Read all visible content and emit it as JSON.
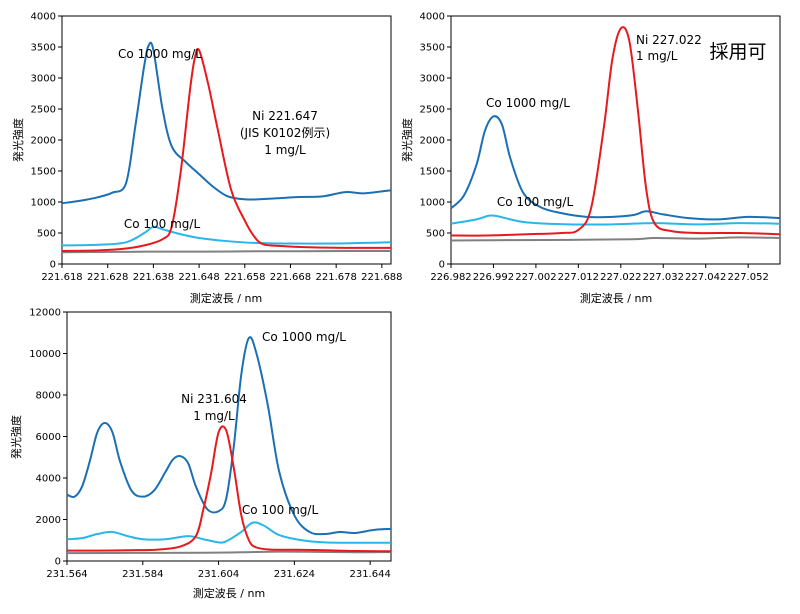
{
  "charts": [
    {
      "xlabel": "測定波長 / nm",
      "ylabel": "発光強度",
      "xticks": [
        "221.618",
        "221.628",
        "221.638",
        "221.648",
        "221.658",
        "221.668",
        "221.678",
        "221.688"
      ],
      "yticks": [
        "0",
        "500",
        "1000",
        "1500",
        "2000",
        "2500",
        "3000",
        "3500",
        "4000"
      ],
      "annotations": [
        {
          "lines": [
            "Co 1000 mg/L"
          ]
        },
        {
          "lines": [
            "Ni 221.647",
            "(JIS K0102例示)",
            "1 mg/L"
          ]
        },
        {
          "lines": [
            "Co 100 mg/L"
          ]
        }
      ]
    },
    {
      "xlabel": "測定波長 / nm",
      "ylabel": "発光強度",
      "xticks": [
        "226.982",
        "226.992",
        "227.002",
        "227.012",
        "227.022",
        "227.032",
        "227.042",
        "227.052"
      ],
      "yticks": [
        "0",
        "500",
        "1000",
        "1500",
        "2000",
        "2500",
        "3000",
        "3500",
        "4000"
      ],
      "annotations": [
        {
          "lines": [
            "Ni 227.022",
            "1 mg/L"
          ]
        },
        {
          "lines": [
            "Co 1000 mg/L"
          ]
        },
        {
          "lines": [
            "Co 100 mg/L"
          ]
        },
        {
          "lines": [
            "採用可"
          ]
        }
      ]
    },
    {
      "xlabel": "測定波長 / nm",
      "ylabel": "発光強度",
      "xticks": [
        "231.564",
        "231.584",
        "231.604",
        "231.624",
        "231.644"
      ],
      "yticks": [
        "0",
        "2000",
        "4000",
        "6000",
        "8000",
        "10000",
        "12000"
      ],
      "annotations": [
        {
          "lines": [
            "Co 1000 mg/L"
          ]
        },
        {
          "lines": [
            "Ni 231.604",
            "1 mg/L"
          ]
        },
        {
          "lines": [
            "Co 100 mg/L"
          ]
        }
      ]
    }
  ],
  "chart_data": [
    {
      "type": "line",
      "title": "",
      "xlabel": "測定波長 / nm",
      "ylabel": "発光強度",
      "xlim": [
        221.618,
        221.69
      ],
      "ylim": [
        0,
        4000
      ],
      "grid": false,
      "colors": {
        "co1000": "#1a6fb5",
        "ni": "#e8191c",
        "co100": "#29b6e8",
        "blank": "#808080"
      },
      "series": [
        {
          "color": "#1a6fb5",
          "x": [
            221.618,
            221.622,
            221.626,
            221.629,
            221.632,
            221.634,
            221.636,
            221.637,
            221.638,
            221.64,
            221.642,
            221.645,
            221.648,
            221.651,
            221.654,
            221.657,
            221.66,
            221.665,
            221.67,
            221.675,
            221.68,
            221.684,
            221.69
          ],
          "y": [
            980,
            1020,
            1080,
            1150,
            1300,
            2200,
            3200,
            3530,
            3450,
            2500,
            1900,
            1650,
            1450,
            1250,
            1100,
            1050,
            1040,
            1060,
            1080,
            1090,
            1160,
            1140,
            1190
          ]
        },
        {
          "color": "#e8191c",
          "x": [
            221.618,
            221.626,
            221.632,
            221.636,
            221.64,
            221.642,
            221.644,
            221.646,
            221.647,
            221.648,
            221.65,
            221.652,
            221.655,
            221.658,
            221.66,
            221.662,
            221.666,
            221.672,
            221.68,
            221.69
          ],
          "y": [
            210,
            220,
            250,
            300,
            400,
            600,
            1500,
            2800,
            3300,
            3450,
            2900,
            2200,
            1200,
            700,
            450,
            320,
            290,
            270,
            260,
            260
          ]
        },
        {
          "color": "#29b6e8",
          "x": [
            221.618,
            221.626,
            221.632,
            221.636,
            221.638,
            221.64,
            221.644,
            221.648,
            221.654,
            221.66,
            221.668,
            221.678,
            221.684,
            221.69
          ],
          "y": [
            300,
            310,
            350,
            500,
            600,
            560,
            480,
            420,
            370,
            340,
            330,
            330,
            340,
            350
          ]
        },
        {
          "color": "#808080",
          "x": [
            221.618,
            221.63,
            221.64,
            221.65,
            221.66,
            221.67,
            221.68,
            221.69
          ],
          "y": [
            190,
            195,
            200,
            200,
            205,
            205,
            210,
            210
          ]
        }
      ]
    },
    {
      "type": "line",
      "title": "",
      "xlabel": "測定波長 / nm",
      "ylabel": "発光強度",
      "xlim": [
        226.982,
        227.0595
      ],
      "ylim": [
        0,
        4000
      ],
      "grid": false,
      "colors": {
        "co1000": "#1a6fb5",
        "ni": "#e8191c",
        "co100": "#29b6e8",
        "blank": "#808080"
      },
      "series": [
        {
          "color": "#1a6fb5",
          "x": [
            226.982,
            226.985,
            226.988,
            226.99,
            226.992,
            226.994,
            226.996,
            226.999,
            227.003,
            227.008,
            227.014,
            227.02,
            227.025,
            227.028,
            227.032,
            227.038,
            227.045,
            227.052,
            227.0595
          ],
          "y": [
            900,
            1100,
            1600,
            2150,
            2380,
            2250,
            1700,
            1150,
            920,
            820,
            760,
            760,
            790,
            850,
            800,
            740,
            720,
            760,
            740
          ]
        },
        {
          "color": "#e8191c",
          "x": [
            226.982,
            226.99,
            227.0,
            227.008,
            227.012,
            227.015,
            227.018,
            227.02,
            227.022,
            227.024,
            227.026,
            227.028,
            227.03,
            227.034,
            227.04,
            227.05,
            227.0595
          ],
          "y": [
            460,
            460,
            480,
            500,
            550,
            900,
            2200,
            3300,
            3800,
            3600,
            2500,
            1200,
            650,
            530,
            500,
            500,
            480
          ]
        },
        {
          "color": "#29b6e8",
          "x": [
            226.982,
            226.988,
            226.991,
            226.993,
            226.996,
            227.0,
            227.01,
            227.02,
            227.03,
            227.04,
            227.05,
            227.0595
          ],
          "y": [
            650,
            720,
            780,
            770,
            720,
            670,
            640,
            640,
            660,
            640,
            660,
            650
          ]
        },
        {
          "color": "#808080",
          "x": [
            226.982,
            226.995,
            227.01,
            227.025,
            227.03,
            227.04,
            227.05,
            227.0595
          ],
          "y": [
            380,
            385,
            390,
            400,
            420,
            410,
            430,
            420
          ]
        }
      ]
    },
    {
      "type": "line",
      "title": "",
      "xlabel": "測定波長 / nm",
      "ylabel": "発光強度",
      "xlim": [
        231.564,
        231.6495
      ],
      "ylim": [
        0,
        12000
      ],
      "grid": false,
      "colors": {
        "co1000": "#1a6fb5",
        "ni": "#e8191c",
        "co100": "#29b6e8",
        "blank": "#808080"
      },
      "series": [
        {
          "color": "#1a6fb5",
          "x": [
            231.564,
            231.566,
            231.568,
            231.57,
            231.572,
            231.574,
            231.576,
            231.578,
            231.581,
            231.584,
            231.587,
            231.59,
            231.592,
            231.594,
            231.596,
            231.598,
            231.601,
            231.604,
            231.606,
            231.608,
            231.61,
            231.612,
            231.614,
            231.617,
            231.62,
            231.624,
            231.628,
            231.632,
            231.636,
            231.64,
            231.645,
            231.6495
          ],
          "y": [
            3200,
            3100,
            3600,
            4800,
            6200,
            6650,
            6200,
            4800,
            3400,
            3100,
            3400,
            4300,
            4900,
            5050,
            4700,
            3600,
            2500,
            2400,
            3000,
            5500,
            9000,
            10750,
            10000,
            7500,
            4300,
            2200,
            1400,
            1300,
            1400,
            1350,
            1500,
            1550
          ]
        },
        {
          "color": "#e8191c",
          "x": [
            231.564,
            231.572,
            231.58,
            231.588,
            231.594,
            231.598,
            231.6,
            231.602,
            231.604,
            231.606,
            231.608,
            231.61,
            231.612,
            231.614,
            231.618,
            231.624,
            231.632,
            231.64,
            231.6495
          ],
          "y": [
            500,
            500,
            520,
            550,
            700,
            1200,
            2500,
            4200,
            6200,
            6300,
            4500,
            2200,
            1000,
            650,
            550,
            540,
            520,
            480,
            470
          ]
        },
        {
          "color": "#29b6e8",
          "x": [
            231.564,
            231.568,
            231.572,
            231.576,
            231.58,
            231.584,
            231.59,
            231.596,
            231.6,
            231.604,
            231.606,
            231.61,
            231.613,
            231.616,
            231.62,
            231.626,
            231.632,
            231.64,
            231.6495
          ],
          "y": [
            1050,
            1100,
            1300,
            1400,
            1200,
            1050,
            1050,
            1200,
            1050,
            900,
            950,
            1400,
            1850,
            1700,
            1250,
            1000,
            900,
            880,
            880
          ]
        },
        {
          "color": "#808080",
          "x": [
            231.564,
            231.58,
            231.6,
            231.61,
            231.62,
            231.63,
            231.64,
            231.6495
          ],
          "y": [
            380,
            390,
            400,
            420,
            450,
            440,
            420,
            430
          ]
        }
      ]
    }
  ]
}
